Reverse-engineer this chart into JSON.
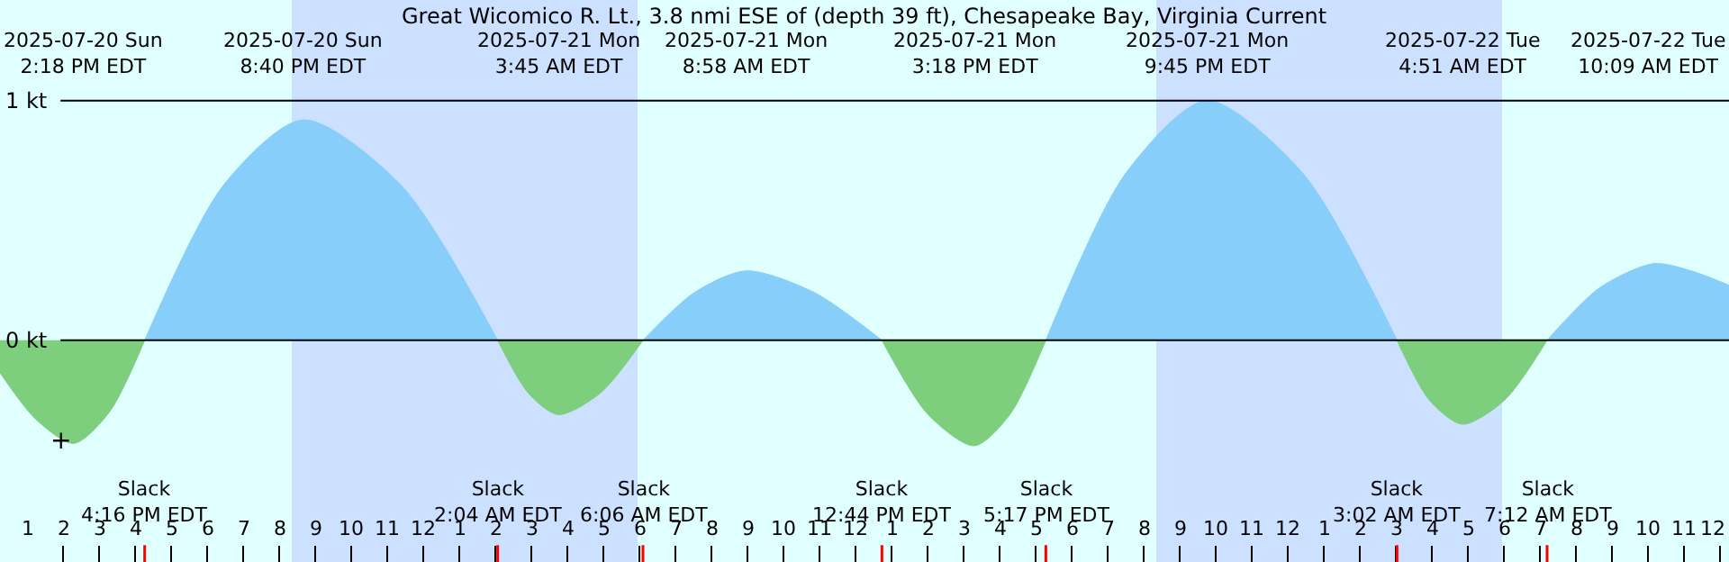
{
  "chart_data": {
    "type": "area",
    "title": "Great Wicomico R. Lt., 3.8 nmi ESE of (depth 39 ft), Chesapeake Bay, Virginia Current",
    "series": [
      {
        "color": "#87cefa",
        "x": [
          "2025-07-20T16:16",
          "2025-07-20T18:28",
          "2025-07-20T20:40",
          "2025-07-20T23:22",
          "2025-07-21T02:04",
          "2025-07-21T04:05",
          "2025-07-21T06:06",
          "2025-07-21T07:32",
          "2025-07-21T08:58",
          "2025-07-21T10:51",
          "2025-07-21T12:44",
          "2025-07-21T15:00",
          "2025-07-21T17:17",
          "2025-07-21T19:31",
          "2025-07-21T21:45",
          "2025-07-22T00:24",
          "2025-07-22T03:02",
          "2025-07-22T05:07",
          "2025-07-22T07:12",
          "2025-07-22T08:40",
          "2025-07-22T10:09",
          "2025-07-22T11:12",
          "2025-07-22T12:15"
        ],
        "values": [
          0,
          0.65,
          0.92,
          0.65,
          0,
          null,
          0,
          0.2,
          0.29,
          0.2,
          0,
          null,
          0,
          0.7,
          1.0,
          0.7,
          0,
          null,
          0,
          0.22,
          0.32,
          0.29,
          0.23
        ]
      },
      {
        "color": "#7dce7d",
        "x": [
          "2025-07-20T12:15",
          "2025-07-20T13:15",
          "2025-07-20T14:18",
          "2025-07-20T15:17",
          "2025-07-20T16:16",
          "2025-07-20T18:28",
          "2025-07-21T02:04",
          "2025-07-21T02:55",
          "2025-07-21T03:45",
          "2025-07-21T04:55",
          "2025-07-21T06:06",
          "2025-07-21T09:25",
          "2025-07-21T12:44",
          "2025-07-21T14:01",
          "2025-07-21T15:18",
          "2025-07-21T16:17",
          "2025-07-21T17:17",
          "2025-07-21T22:10",
          "2025-07-22T03:02",
          "2025-07-22T03:56",
          "2025-07-22T04:51",
          "2025-07-22T06:01",
          "2025-07-22T07:12"
        ],
        "values": [
          -0.135,
          -0.33,
          -0.43,
          -0.3,
          0,
          null,
          0,
          -0.22,
          -0.31,
          -0.22,
          0,
          null,
          0,
          -0.31,
          -0.44,
          -0.31,
          0,
          null,
          0,
          -0.25,
          -0.35,
          -0.25,
          0
        ]
      }
    ],
    "xlim": [
      "2025-07-20T12:15",
      "2025-07-22T12:15"
    ],
    "ylim": [
      -0.925,
      1.42
    ],
    "yticks": [
      {
        "value": 0,
        "label": "0 kt"
      },
      {
        "value": 1,
        "label": "1 kt"
      }
    ],
    "grid": "y",
    "bands": [
      {
        "axis": "x",
        "from": "2025-07-20T20:21",
        "to": "2025-07-21T05:57",
        "color": "#cce0ff"
      },
      {
        "axis": "x",
        "from": "2025-07-21T20:21",
        "to": "2025-07-22T05:57",
        "color": "#cce0ff"
      }
    ],
    "annotations": [
      "2025-07-20 Sun\n2:18 PM EDT",
      "2025-07-20 Sun\n8:40 PM EDT",
      "2025-07-21 Mon\n3:45 AM EDT",
      "2025-07-21 Mon\n8:58 AM EDT",
      "2025-07-21 Mon\n3:18 PM EDT",
      "2025-07-21 Mon\n9:45 PM EDT",
      "2025-07-22 Tue\n4:51 AM EDT",
      "2025-07-22 Tue\n10:09 AM EDT",
      "Slack\n4:16 PM EDT",
      "Slack\n2:04 AM EDT",
      "Slack\n6:06 AM EDT",
      "Slack\n12:44 PM EDT",
      "Slack\n5:17 PM EDT",
      "Slack\n3:02 AM EDT",
      "Slack\n7:12 AM EDT",
      {
        "text": "+",
        "x": "2025-07-20T13:57",
        "y": -0.42
      }
    ],
    "xticks": [
      {
        "value": "2025-07-20T13:00",
        "label": "1"
      },
      {
        "value": "2025-07-20T14:00",
        "label": "2"
      },
      {
        "value": "2025-07-20T15:00",
        "label": "3"
      },
      {
        "value": "2025-07-20T16:00",
        "label": "4"
      },
      {
        "value": "2025-07-20T17:00",
        "label": "5"
      },
      {
        "value": "2025-07-20T18:00",
        "label": "6"
      },
      {
        "value": "2025-07-20T19:00",
        "label": "7"
      },
      {
        "value": "2025-07-20T20:00",
        "label": "8"
      },
      {
        "value": "2025-07-20T21:00",
        "label": "9"
      },
      {
        "value": "2025-07-20T22:00",
        "label": "10"
      },
      {
        "value": "2025-07-20T23:00",
        "label": "11"
      },
      {
        "value": "2025-07-21T00:00",
        "label": "12"
      },
      {
        "value": "2025-07-21T01:00",
        "label": "1"
      },
      {
        "value": "2025-07-21T02:00",
        "label": "2"
      },
      {
        "value": "2025-07-21T03:00",
        "label": "3"
      },
      {
        "value": "2025-07-21T04:00",
        "label": "4"
      },
      {
        "value": "2025-07-21T05:00",
        "label": "5"
      },
      {
        "value": "2025-07-21T06:00",
        "label": "6"
      },
      {
        "value": "2025-07-21T07:00",
        "label": "7"
      },
      {
        "value": "2025-07-21T08:00",
        "label": "8"
      },
      {
        "value": "2025-07-21T09:00",
        "label": "9"
      },
      {
        "value": "2025-07-21T10:00",
        "label": "10"
      },
      {
        "value": "2025-07-21T11:00",
        "label": "11"
      },
      {
        "value": "2025-07-21T12:00",
        "label": "12"
      },
      {
        "value": "2025-07-21T13:00",
        "label": "1"
      },
      {
        "value": "2025-07-21T14:00",
        "label": "2"
      },
      {
        "value": "2025-07-21T15:00",
        "label": "3"
      },
      {
        "value": "2025-07-21T16:00",
        "label": "4"
      },
      {
        "value": "2025-07-21T17:00",
        "label": "5"
      },
      {
        "value": "2025-07-21T18:00",
        "label": "6"
      },
      {
        "value": "2025-07-21T19:00",
        "label": "7"
      },
      {
        "value": "2025-07-21T20:00",
        "label": "8"
      },
      {
        "value": "2025-07-21T21:00",
        "label": "9"
      },
      {
        "value": "2025-07-21T22:00",
        "label": "10"
      },
      {
        "value": "2025-07-21T23:00",
        "label": "11"
      },
      {
        "value": "2025-07-22T00:00",
        "label": "12"
      },
      {
        "value": "2025-07-22T01:00",
        "label": "1"
      },
      {
        "value": "2025-07-22T02:00",
        "label": "2"
      },
      {
        "value": "2025-07-22T03:00",
        "label": "3"
      },
      {
        "value": "2025-07-22T04:00",
        "label": "4"
      },
      {
        "value": "2025-07-22T05:00",
        "label": "5"
      },
      {
        "value": "2025-07-22T06:00",
        "label": "6"
      },
      {
        "value": "2025-07-22T07:00",
        "label": "7"
      },
      {
        "value": "2025-07-22T08:00",
        "label": "8"
      },
      {
        "value": "2025-07-22T09:00",
        "label": "9"
      },
      {
        "value": "2025-07-22T10:00",
        "label": "10"
      },
      {
        "value": "2025-07-22T11:00",
        "label": "11"
      },
      {
        "value": "2025-07-22T12:00",
        "label": "12"
      }
    ]
  }
}
